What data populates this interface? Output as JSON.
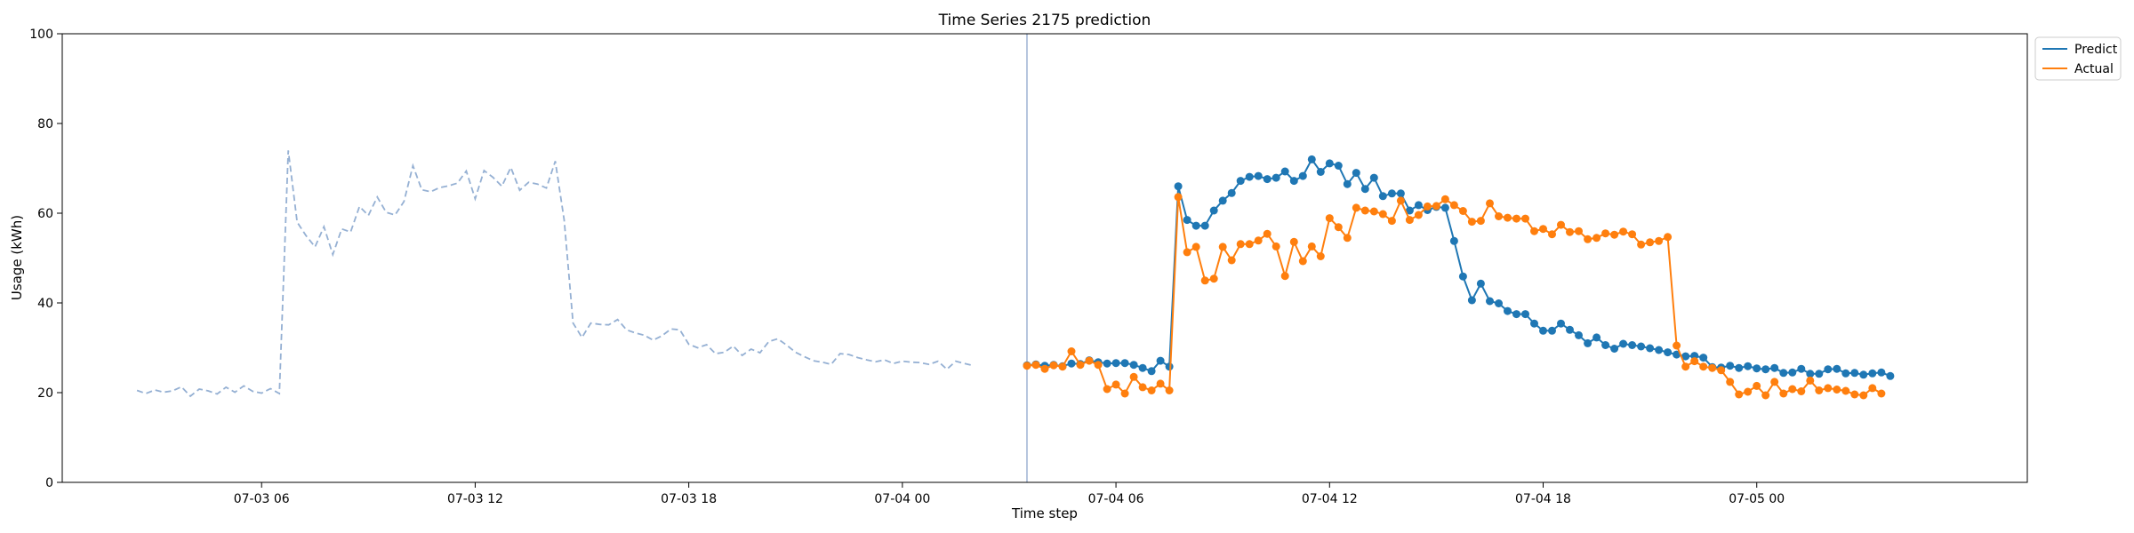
{
  "chart_data": {
    "type": "line",
    "title": "Time Series 2175 prediction",
    "xlabel": "Time step",
    "ylabel": "Usage (kWh)",
    "ylim": [
      0,
      100
    ],
    "yticks": [
      0,
      20,
      40,
      60,
      80,
      100
    ],
    "xlim": [
      "2024-07-03 00:24",
      "2024-07-05 07:36"
    ],
    "xticks": [
      {
        "t": "2024-07-03 06:00",
        "label": "07-03 06"
      },
      {
        "t": "2024-07-03 12:00",
        "label": "07-03 12"
      },
      {
        "t": "2024-07-03 18:00",
        "label": "07-03 18"
      },
      {
        "t": "2024-07-04 00:00",
        "label": "07-04 00"
      },
      {
        "t": "2024-07-04 06:00",
        "label": "07-04 06"
      },
      {
        "t": "2024-07-04 12:00",
        "label": "07-04 12"
      },
      {
        "t": "2024-07-04 18:00",
        "label": "07-04 18"
      },
      {
        "t": "2024-07-05 00:00",
        "label": "07-05 00"
      }
    ],
    "grid": false,
    "legend_position": "outside-top-right",
    "forecast_start": "2024-07-04 03:30",
    "history": {
      "start": "2024-07-03 02:30",
      "step_minutes": 15,
      "style": "dashed",
      "color": "#95b0d3",
      "values": [
        20.5,
        19.8,
        20.6,
        20.1,
        20.4,
        21.3,
        19.2,
        20.8,
        20.4,
        19.7,
        21.2,
        20.1,
        21.5,
        20.3,
        19.9,
        20.9,
        19.8,
        74.0,
        58.0,
        55.0,
        52.5,
        57.0,
        50.8,
        56.5,
        55.8,
        61.5,
        59.5,
        63.6,
        60.2,
        59.6,
        62.6,
        70.6,
        65.2,
        64.8,
        65.7,
        66.1,
        66.7,
        69.4,
        63.2,
        69.5,
        68.0,
        66.0,
        70.2,
        65.1,
        66.9,
        66.5,
        65.6,
        71.6,
        58.5,
        35.5,
        32.3,
        35.5,
        35.2,
        35.1,
        36.3,
        34.0,
        33.3,
        32.8,
        31.7,
        32.7,
        34.2,
        34.0,
        30.8,
        30.0,
        30.7,
        28.7,
        29.0,
        30.4,
        28.3,
        29.7,
        28.9,
        31.4,
        32.0,
        30.6,
        29.0,
        28.0,
        27.1,
        26.8,
        26.3,
        28.7,
        28.5,
        27.8,
        27.3,
        26.9,
        27.3,
        26.5,
        27.0,
        26.8,
        26.7,
        26.3,
        27.0,
        25.2,
        27.0,
        26.5,
        26.0
      ]
    },
    "forecast": {
      "start": "2024-07-04 03:30",
      "step_minutes": 15,
      "series": [
        {
          "name": "Predict",
          "color": "#1f77b4",
          "values": [
            26.1,
            26.3,
            26.0,
            26.2,
            25.9,
            26.5,
            26.4,
            27.2,
            26.8,
            26.5,
            26.6,
            26.6,
            26.2,
            25.5,
            24.8,
            27.1,
            25.8,
            66.0,
            58.5,
            57.2,
            57.2,
            60.6,
            62.8,
            64.5,
            67.2,
            68.1,
            68.3,
            67.6,
            67.9,
            69.3,
            67.2,
            68.3,
            72.0,
            69.2,
            71.1,
            70.6,
            66.5,
            69.0,
            65.4,
            67.9,
            63.8,
            64.4,
            64.4,
            60.6,
            61.8,
            60.7,
            61.4,
            61.2,
            53.8,
            45.9,
            40.6,
            44.3,
            40.4,
            39.9,
            38.2,
            37.5,
            37.5,
            35.4,
            33.8,
            33.8,
            35.4,
            34.0,
            32.8,
            31.0,
            32.3,
            30.6,
            29.8,
            30.9,
            30.6,
            30.3,
            29.9,
            29.5,
            29.0,
            28.5,
            28.1,
            28.2,
            27.8,
            25.7,
            25.6,
            26.0,
            25.5,
            25.9,
            25.4,
            25.2,
            25.5,
            24.4,
            24.5,
            25.3,
            24.2,
            24.2,
            25.2,
            25.3,
            24.3,
            24.4,
            24.0,
            24.3,
            24.5,
            23.7
          ]
        },
        {
          "name": "Actual",
          "color": "#ff7f0e",
          "values": [
            26.0,
            26.2,
            25.3,
            26.1,
            25.8,
            29.2,
            26.2,
            27.1,
            26.2,
            20.8,
            21.8,
            19.8,
            23.5,
            21.2,
            20.5,
            22.0,
            20.5,
            63.6,
            51.3,
            52.5,
            45.0,
            45.4,
            52.5,
            49.5,
            53.1,
            53.1,
            53.9,
            55.4,
            52.6,
            46.0,
            53.6,
            49.3,
            52.6,
            50.4,
            58.9,
            56.9,
            54.5,
            61.2,
            60.6,
            60.4,
            59.8,
            58.3,
            62.8,
            58.5,
            59.6,
            61.5,
            61.6,
            63.1,
            61.8,
            60.5,
            58.1,
            58.3,
            62.2,
            59.3,
            59.0,
            58.8,
            58.8,
            56.0,
            56.5,
            55.3,
            57.4,
            55.8,
            56.0,
            54.2,
            54.5,
            55.5,
            55.2,
            55.9,
            55.3,
            53.0,
            53.5,
            53.8,
            54.7,
            30.5,
            25.8,
            27.0,
            25.8,
            25.5,
            25.0,
            22.4,
            19.6,
            20.2,
            21.5,
            19.4,
            22.4,
            19.8,
            20.8,
            20.3,
            22.7,
            20.5,
            21.0,
            20.7,
            20.4,
            19.6,
            19.4,
            21.0,
            19.8
          ]
        }
      ]
    }
  }
}
